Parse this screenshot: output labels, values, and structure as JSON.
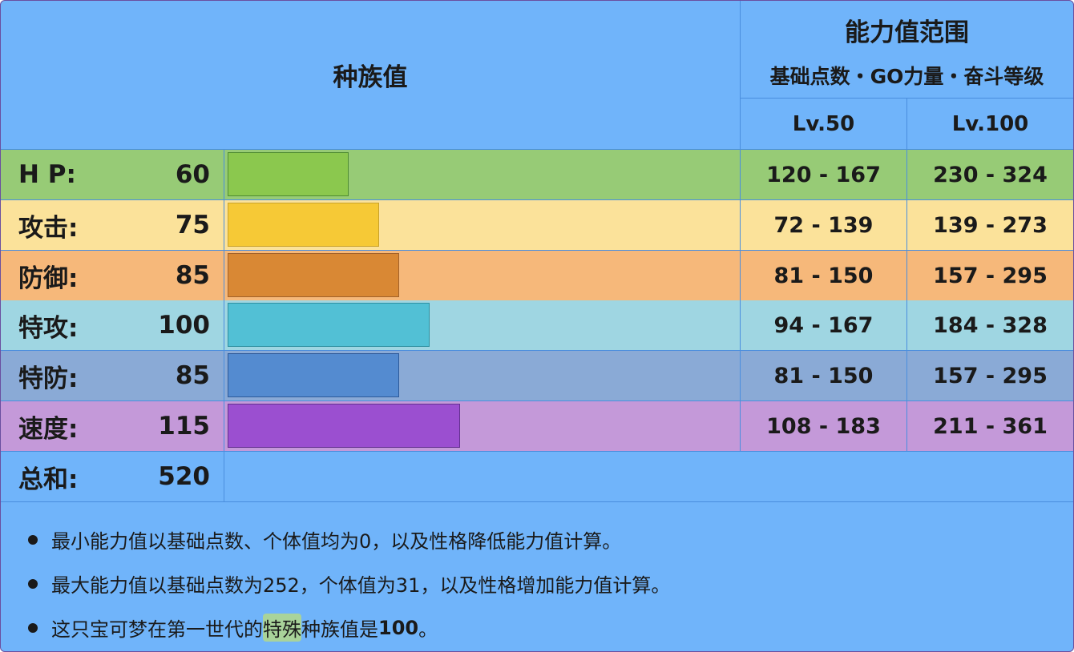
{
  "header": {
    "base_stats_title": "种族值",
    "range_title": "能力值范围",
    "range_subtitle": "基础点数・GO力量・奋斗等级",
    "level_50": "Lv.50",
    "level_100": "Lv.100"
  },
  "stats": [
    {
      "label": "H P:",
      "value": "60",
      "base": 60,
      "lv50": "120 - 167",
      "lv100": "230 - 324",
      "row_color": "#97cb76",
      "bar_color": "#8bc84e",
      "bar_border": "#4f8c33"
    },
    {
      "label": "攻击:",
      "value": "75",
      "base": 75,
      "lv50": "72 - 139",
      "lv100": "139 - 273",
      "row_color": "#fbe29a",
      "bar_color": "#f6c936",
      "bar_border": "#c8a12a"
    },
    {
      "label": "防御:",
      "value": "85",
      "base": 85,
      "lv50": "81 - 150",
      "lv100": "157 - 295",
      "row_color": "#f6b87a",
      "bar_color": "#d98834",
      "bar_border": "#a2612a"
    },
    {
      "label": "特攻:",
      "value": "100",
      "base": 100,
      "lv50": "94 - 167",
      "lv100": "184 - 328",
      "row_color": "#9fd6e2",
      "bar_color": "#52c0d5",
      "bar_border": "#2e8fa0"
    },
    {
      "label": "特防:",
      "value": "85",
      "base": 85,
      "lv50": "81 - 150",
      "lv100": "157 - 295",
      "row_color": "#8aaad6",
      "bar_color": "#548bd0",
      "bar_border": "#2d5a9a"
    },
    {
      "label": "速度:",
      "value": "115",
      "base": 115,
      "lv50": "108 - 183",
      "lv100": "211 - 361",
      "row_color": "#c499d9",
      "bar_color": "#9b4fd0",
      "bar_border": "#63308f"
    }
  ],
  "total": {
    "label": "总和:",
    "value": "520"
  },
  "notes": {
    "note1": "最小能力值以基础点数、个体值均为0，以及性格降低能力值计算。",
    "note2": "最大能力值以基础点数为252，个体值为31，以及性格增加能力值计算。",
    "note3_prefix": "这只宝可梦在第一世代的",
    "note3_highlight": "特殊",
    "note3_middle": "种族值是",
    "note3_value": "100",
    "note3_suffix": "。"
  }
}
